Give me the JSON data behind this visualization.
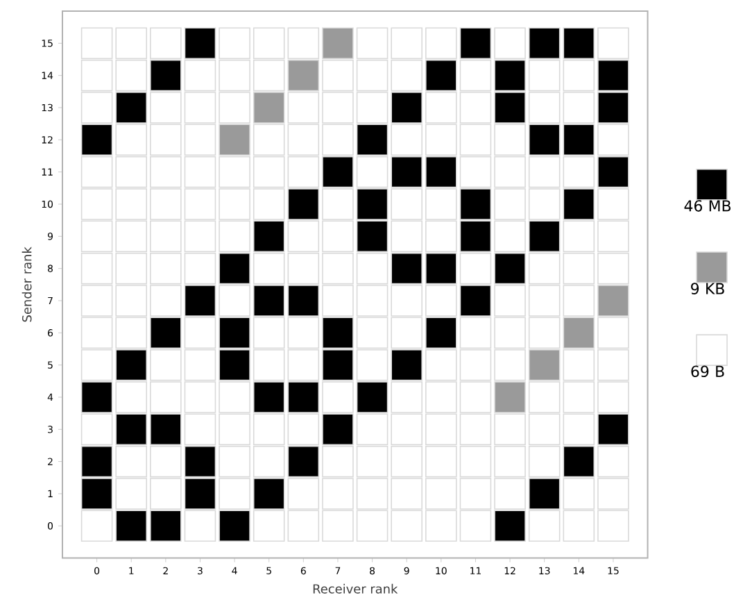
{
  "chart_data": {
    "type": "scatter",
    "xlabel": "Receiver rank",
    "ylabel": "Sender rank",
    "xlim": [
      -1,
      16
    ],
    "ylim": [
      -1,
      16
    ],
    "xticks": [
      0,
      1,
      2,
      3,
      4,
      5,
      6,
      7,
      8,
      9,
      10,
      11,
      12,
      13,
      14,
      15
    ],
    "yticks": [
      0,
      1,
      2,
      3,
      4,
      5,
      6,
      7,
      8,
      9,
      10,
      11,
      12,
      13,
      14,
      15
    ],
    "marker": "square",
    "legend": "right",
    "grid": false,
    "series": [
      {
        "name": "46 MB",
        "color": "#000000",
        "x": [
          3,
          11,
          13,
          14,
          2,
          10,
          12,
          15,
          1,
          9,
          12,
          15,
          0,
          8,
          13,
          14,
          7,
          9,
          10,
          15,
          6,
          8,
          11,
          14,
          5,
          8,
          11,
          13,
          4,
          9,
          10,
          12,
          3,
          5,
          6,
          11,
          2,
          4,
          7,
          10,
          1,
          4,
          7,
          9,
          0,
          5,
          6,
          8,
          1,
          2,
          7,
          15,
          0,
          3,
          6,
          14,
          0,
          3,
          5,
          13,
          1,
          2,
          4,
          12
        ],
        "values": [
          15,
          15,
          15,
          15,
          14,
          14,
          14,
          14,
          13,
          13,
          13,
          13,
          12,
          12,
          12,
          12,
          11,
          11,
          11,
          11,
          10,
          10,
          10,
          10,
          9,
          9,
          9,
          9,
          8,
          8,
          8,
          8,
          7,
          7,
          7,
          7,
          6,
          6,
          6,
          6,
          5,
          5,
          5,
          5,
          4,
          4,
          4,
          4,
          3,
          3,
          3,
          3,
          2,
          2,
          2,
          2,
          1,
          1,
          1,
          1,
          0,
          0,
          0,
          0
        ]
      },
      {
        "name": "9 KB",
        "color": "#9a9a9a",
        "x": [
          7,
          6,
          5,
          4,
          15,
          14,
          13,
          12
        ],
        "values": [
          15,
          14,
          13,
          12,
          7,
          6,
          5,
          4
        ]
      },
      {
        "name": "69 B",
        "color": "#ffffff",
        "x": [
          0,
          1,
          2,
          4,
          5,
          6,
          8,
          9,
          10,
          12,
          15,
          0,
          1,
          3,
          4,
          5,
          7,
          8,
          9,
          11,
          13,
          14,
          0,
          2,
          3,
          4,
          6,
          7,
          8,
          10,
          11,
          13,
          14,
          1,
          2,
          3,
          5,
          6,
          7,
          9,
          10,
          11,
          12,
          15,
          0,
          1,
          2,
          3,
          4,
          5,
          6,
          8,
          11,
          12,
          13,
          14,
          0,
          1,
          2,
          3,
          4,
          5,
          7,
          9,
          10,
          12,
          13,
          15,
          0,
          1,
          2,
          3,
          4,
          6,
          7,
          9,
          10,
          12,
          14,
          15,
          0,
          1,
          2,
          3,
          5,
          6,
          7,
          8,
          11,
          13,
          14,
          15,
          0,
          1,
          2,
          4,
          7,
          8,
          9,
          10,
          12,
          13,
          14,
          0,
          1,
          3,
          5,
          6,
          8,
          9,
          11,
          12,
          13,
          15,
          0,
          2,
          3,
          5,
          6,
          8,
          10,
          11,
          12,
          14,
          15,
          1,
          2,
          3,
          4,
          7,
          9,
          10,
          11,
          13,
          14,
          15,
          0,
          3,
          4,
          5,
          6,
          8,
          9,
          10,
          11,
          12,
          13,
          14,
          1,
          2,
          4,
          5,
          7,
          8,
          9,
          10,
          11,
          12,
          13,
          15,
          1,
          2,
          4,
          6,
          7,
          8,
          9,
          10,
          11,
          12,
          14,
          15,
          0,
          3,
          5,
          6,
          7,
          8,
          9,
          10,
          11,
          13,
          14,
          15
        ],
        "values": [
          15,
          15,
          15,
          15,
          15,
          15,
          15,
          15,
          15,
          15,
          15,
          14,
          14,
          14,
          14,
          14,
          14,
          14,
          14,
          14,
          14,
          14,
          13,
          13,
          13,
          13,
          13,
          13,
          13,
          13,
          13,
          13,
          13,
          12,
          12,
          12,
          12,
          12,
          12,
          12,
          12,
          12,
          12,
          12,
          11,
          11,
          11,
          11,
          11,
          11,
          11,
          11,
          11,
          11,
          11,
          11,
          10,
          10,
          10,
          10,
          10,
          10,
          10,
          10,
          10,
          10,
          10,
          10,
          9,
          9,
          9,
          9,
          9,
          9,
          9,
          9,
          9,
          9,
          9,
          9,
          8,
          8,
          8,
          8,
          8,
          8,
          8,
          8,
          8,
          8,
          8,
          8,
          7,
          7,
          7,
          7,
          7,
          7,
          7,
          7,
          7,
          7,
          7,
          6,
          6,
          6,
          6,
          6,
          6,
          6,
          6,
          6,
          6,
          6,
          5,
          5,
          5,
          5,
          5,
          5,
          5,
          5,
          5,
          5,
          5,
          4,
          4,
          4,
          4,
          4,
          4,
          4,
          4,
          4,
          4,
          4,
          3,
          3,
          3,
          3,
          3,
          3,
          3,
          3,
          3,
          3,
          3,
          3,
          2,
          2,
          2,
          2,
          2,
          2,
          2,
          2,
          2,
          2,
          2,
          2,
          1,
          1,
          1,
          1,
          1,
          1,
          1,
          1,
          1,
          1,
          1,
          1,
          0,
          0,
          0,
          0,
          0,
          0,
          0,
          0,
          0,
          0,
          0,
          0
        ]
      }
    ]
  }
}
